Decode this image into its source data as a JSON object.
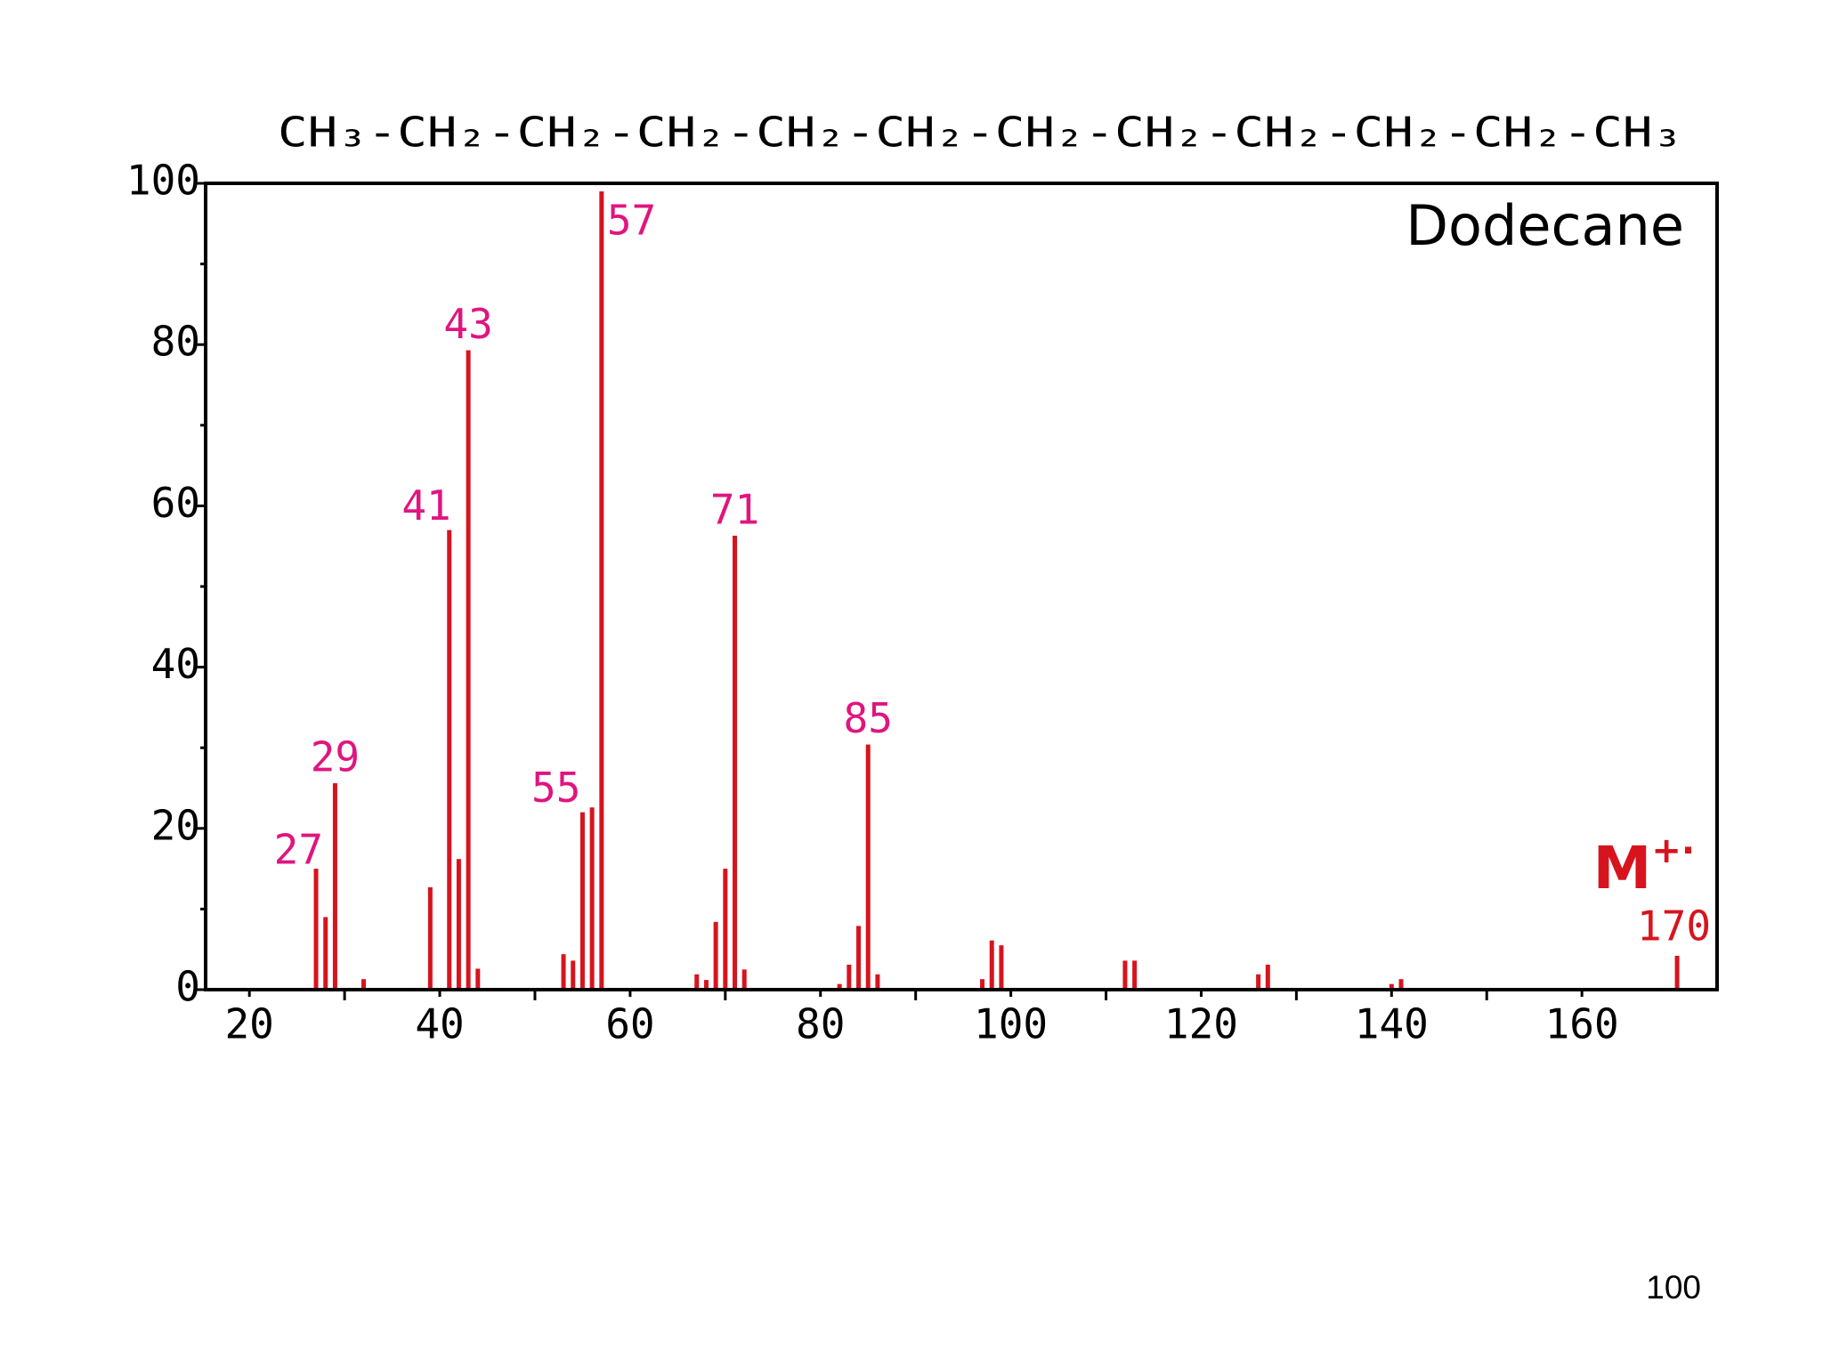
{
  "chart_data": {
    "type": "bar",
    "formula": "CH₃-CH₂-CH₂-CH₂-CH₂-CH₂-CH₂-CH₂-CH₂-CH₂-CH₂-CH₃",
    "title": "Dodecane",
    "x": [
      27,
      28,
      29,
      32,
      39,
      41,
      42,
      43,
      44,
      53,
      54,
      55,
      56,
      57,
      67,
      68,
      69,
      70,
      71,
      72,
      82,
      83,
      84,
      85,
      86,
      97,
      98,
      99,
      112,
      113,
      126,
      127,
      140,
      141,
      170
    ],
    "values": [
      15,
      9,
      25.6,
      1.3,
      12.7,
      57,
      16.2,
      79.3,
      2.6,
      4.4,
      3.6,
      22,
      22.6,
      99,
      1.9,
      1.2,
      8.4,
      15,
      56.3,
      2.5,
      0.7,
      3.1,
      7.9,
      30.4,
      1.9,
      1.3,
      6.1,
      5.5,
      3.6,
      3.6,
      1.9,
      3.1,
      0.7,
      1.3,
      4.2
    ],
    "peak_labels": [
      "27",
      null,
      "29",
      null,
      null,
      "41",
      null,
      "43",
      null,
      null,
      null,
      "55",
      null,
      "57",
      null,
      null,
      null,
      null,
      "71",
      null,
      null,
      null,
      null,
      "85",
      null,
      null,
      null,
      null,
      null,
      null,
      null,
      null,
      null,
      null,
      "170"
    ],
    "molecular_ion_label": "M",
    "molecular_ion_charge": "+·",
    "color": "#d7141e",
    "label_color": "#e0157f",
    "xlim": [
      15.4,
      174.2
    ],
    "ylim": [
      0,
      100
    ],
    "xticks": [
      20,
      40,
      60,
      80,
      100,
      120,
      140,
      160
    ],
    "xminorticks": [
      30,
      50,
      70,
      90,
      110,
      130,
      150
    ],
    "yticks": [
      0,
      20,
      40,
      60,
      80,
      100
    ],
    "yminorticks": [
      10,
      30,
      50,
      70,
      90
    ]
  },
  "footer": {
    "page_number": "100"
  }
}
